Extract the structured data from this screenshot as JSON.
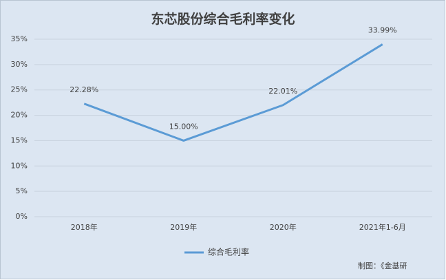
{
  "chart_data": {
    "type": "line",
    "title": "东芯股份综合毛利率变化",
    "categories": [
      "2018年",
      "2019年",
      "2020年",
      "2021年1-6月"
    ],
    "series": [
      {
        "name": "综合毛利率",
        "color": "#5b9bd5",
        "values": [
          22.28,
          15.0,
          22.01,
          33.99
        ],
        "value_labels": [
          "22.28%",
          "15.00%",
          "22.01%",
          "33.99%"
        ]
      }
    ],
    "ylim": [
      0,
      35
    ],
    "yticks": [
      {
        "value": 0,
        "label": "0%"
      },
      {
        "value": 5,
        "label": "5%"
      },
      {
        "value": 10,
        "label": "10%"
      },
      {
        "value": 15,
        "label": "15%"
      },
      {
        "value": 20,
        "label": "20%"
      },
      {
        "value": 25,
        "label": "25%"
      },
      {
        "value": 30,
        "label": "30%"
      },
      {
        "value": 35,
        "label": "35%"
      }
    ],
    "grid": true,
    "legend": "bottom",
    "source": "制图：《金基研"
  }
}
